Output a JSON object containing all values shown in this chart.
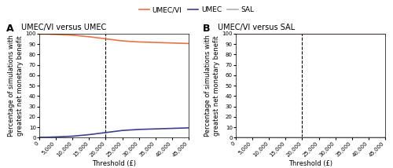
{
  "panel_A_title": "UMEC/VI versus UMEC",
  "panel_B_title": "UMEC/VI versus SAL",
  "legend_labels": [
    "UMEC/VI",
    "UMEC",
    "SAL"
  ],
  "legend_colors": [
    "#E8734A",
    "#3B3F8C",
    "#B0B0B0"
  ],
  "xlabel": "Threshold (£)",
  "ylabel": "Percentage of simulations with\ngreatest net monetary benefit",
  "xlim": [
    0,
    45000
  ],
  "ylim": [
    0,
    100
  ],
  "xticks": [
    0,
    5000,
    10000,
    15000,
    20000,
    25000,
    30000,
    35000,
    40000,
    45000
  ],
  "xtick_labels": [
    "0",
    "5,000",
    "10,000",
    "15,000",
    "20,000",
    "25,000",
    "30,000",
    "35,000",
    "40,000",
    "45,000"
  ],
  "yticks": [
    0,
    10,
    20,
    30,
    40,
    50,
    60,
    70,
    80,
    90,
    100
  ],
  "vline_x": 20000,
  "panel_A": {
    "UMECVI_x": [
      0,
      2000,
      5000,
      10000,
      15000,
      20000,
      25000,
      30000,
      35000,
      40000,
      45000
    ],
    "UMECVI_y": [
      99.5,
      99.5,
      99.2,
      98.5,
      97,
      95,
      93,
      92,
      91.5,
      91,
      90.5
    ],
    "UMEC_x": [
      0,
      2000,
      5000,
      10000,
      15000,
      20000,
      25000,
      30000,
      35000,
      40000,
      45000
    ],
    "UMEC_y": [
      0.5,
      0.5,
      0.8,
      1.5,
      3,
      5,
      7,
      8,
      8.5,
      9,
      9.5
    ]
  },
  "panel_B": {
    "UMECVI_x": [
      0,
      5000,
      10000,
      15000,
      20000,
      25000,
      30000,
      35000,
      40000,
      45000
    ],
    "UMECVI_y": [
      100,
      100,
      100,
      100,
      100,
      100,
      100,
      100,
      100,
      100
    ],
    "SAL_x": [
      0,
      5000,
      10000,
      15000,
      20000,
      25000,
      30000,
      35000,
      40000,
      45000
    ],
    "SAL_y": [
      0,
      0,
      0,
      0,
      0,
      0,
      0,
      0,
      0,
      0
    ]
  },
  "background_color": "#FFFFFF",
  "line_width": 1.2,
  "title_fontsize": 7,
  "axis_fontsize": 6,
  "tick_fontsize": 5,
  "legend_fontsize": 6.5
}
